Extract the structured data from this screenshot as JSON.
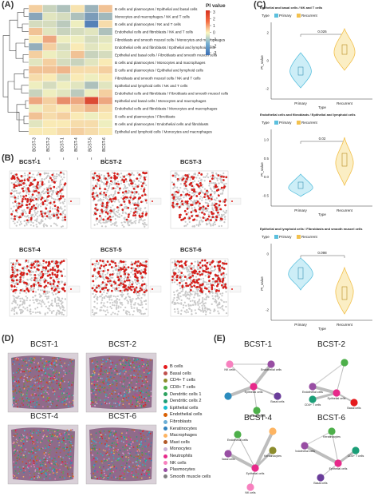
{
  "panels": {
    "A": "(A)",
    "B": "(B)",
    "C": "(C)",
    "D": "(D)",
    "E": "(E)"
  },
  "colors": {
    "heat_low": "#3b6fb6",
    "heat_mid": "#fbf7c0",
    "heat_high": "#d7301f",
    "primary": "#5bc0de",
    "recurrent": "#f2c14e",
    "spot": "#e3201b",
    "tissue": "#c9c9c9"
  },
  "heatmap": {
    "legend_title": "PI value",
    "legend_ticks": [
      "3",
      "2",
      "1",
      "0",
      "-1",
      "-2",
      "-3"
    ],
    "columns": [
      "BCST-3",
      "BCST-2",
      "BCST-1",
      "BCST-4",
      "BCST-5",
      "BCST-6"
    ],
    "rows": [
      "B cells and plasmocytes / Epithelial and basal cells",
      "Monocytes and macrophages / NK and T cells",
      "B cells and plasmocytes / NK and T cells",
      "Endothelial cells and fibroblasts / NK and T cells",
      "Fibroblasts and smooth muscel cells / Monocytes and macrophages",
      "Endothelial cells and fibroblasts / Epithelial and lymphoid cells",
      "Epithelial and basal cells / Fibroblasts and smooth muscel cells",
      "B cells and plasmocytes / Monocytes and macrophages",
      "B cells and plasmocytes / Epithelial and lymphoid cells",
      "Fibroblasts and smooth muscel cells / NK and T cells",
      "Epithelial and lymphoid cells / NK and T cells",
      "Endothelial cells and fibroblasts / Fibroblasts and smooth muscel cells",
      "Epithelial and basal cells / Monocytes and macrophages",
      "Endothelial cells and fibroblasts / Monocytes and macrophages",
      "B cells and plasmocytes / Fibroblasts",
      "B cells and plasmocytes / Endothelial cells and fibroblasts",
      "Epithelial and lymphoid cells / Monocytes and macrophages"
    ],
    "values": [
      [
        0.6,
        -0.8,
        -1.2,
        0.3,
        -1.5,
        0.8
      ],
      [
        -1.8,
        -0.4,
        -0.6,
        -1.2,
        -2.0,
        -1.4
      ],
      [
        -0.6,
        -0.6,
        -1.0,
        -0.2,
        -2.6,
        0.4
      ],
      [
        0.8,
        -0.4,
        -0.8,
        -0.6,
        -0.4,
        -1.2
      ],
      [
        0.2,
        1.2,
        -0.2,
        -0.2,
        -0.6,
        -0.4
      ],
      [
        -1.6,
        0.6,
        -0.6,
        0.2,
        -0.4,
        -0.2
      ],
      [
        0.6,
        -0.2,
        -0.4,
        0.8,
        -0.8,
        -0.6
      ],
      [
        -0.4,
        0.6,
        -0.6,
        -0.8,
        -0.4,
        0.2
      ],
      [
        0.8,
        0.8,
        1.0,
        0.4,
        0.4,
        0.6
      ],
      [
        0.4,
        0.2,
        -0.6,
        0.2,
        -0.2,
        0.2
      ],
      [
        -0.2,
        -0.6,
        -0.2,
        -0.4,
        -1.2,
        -0.4
      ],
      [
        -0.8,
        -0.2,
        -0.4,
        -1.0,
        -0.2,
        0.6
      ],
      [
        1.2,
        0.6,
        1.6,
        1.2,
        2.6,
        1.2
      ],
      [
        -0.2,
        0.4,
        0.2,
        0.6,
        1.0,
        0.4
      ],
      [
        0.8,
        0.4,
        0.6,
        0.2,
        -0.2,
        0.2
      ],
      [
        -0.4,
        0.2,
        0.2,
        0.4,
        0.4,
        -0.2
      ],
      [
        0.2,
        0.2,
        0.4,
        0.6,
        0.4,
        0.2
      ]
    ]
  },
  "spatial_maps": {
    "titles": [
      "BCST-1",
      "BCST-2",
      "BCST-3",
      "BCST-4",
      "BCST-5",
      "BCST-6"
    ]
  },
  "violin": {
    "legend_title": "Type",
    "primary_label": "Primary",
    "recurrent_label": "Recurrent",
    "ylabel": "PI_value",
    "xlabel": "Type",
    "plots": [
      {
        "title": "Epithelial and basal cells / NK and T cells",
        "pvalue": "0.026",
        "ticks": [
          "2",
          "0",
          "-2"
        ]
      },
      {
        "title": "Endothelial cells and fibroblasts / Epithelial and lymphoid cells",
        "pvalue": "0.02",
        "ticks": [
          "1.0",
          "0.5",
          "0.0",
          "-0.5"
        ]
      },
      {
        "title": "Epithelial and lymphoid cells / Fibroblasts and smooth muscel cells",
        "pvalue": "0.098",
        "ticks": [
          "0",
          "-2"
        ]
      }
    ]
  },
  "cell_types": {
    "titles": [
      "BCST-1",
      "BCST-2",
      "BCST-4",
      "BCST-6"
    ],
    "legend": [
      {
        "label": "B cells",
        "color": "#e41a1c"
      },
      {
        "label": "Basal cells",
        "color": "#c0504d"
      },
      {
        "label": "CD4+ T cells",
        "color": "#8c8c2c"
      },
      {
        "label": "CD8+ T cells",
        "color": "#4daf4a"
      },
      {
        "label": "Dendritic cells 1",
        "color": "#2ca25f"
      },
      {
        "label": "Dendritic cells 2",
        "color": "#1b9e77"
      },
      {
        "label": "Epithelial cells",
        "color": "#17becf"
      },
      {
        "label": "Endothelial cells",
        "color": "#d95f02"
      },
      {
        "label": "Fibroblasts",
        "color": "#6baed6"
      },
      {
        "label": "Keratinocytes",
        "color": "#3182bd"
      },
      {
        "label": "Macrophages",
        "color": "#fdb462"
      },
      {
        "label": "Mast cells",
        "color": "#b15928"
      },
      {
        "label": "Monocytes",
        "color": "#cab2d6"
      },
      {
        "label": "Neutrophils",
        "color": "#e7298a"
      },
      {
        "label": "NK cells",
        "color": "#f781bf"
      },
      {
        "label": "Plasmocytes",
        "color": "#984ea3"
      },
      {
        "label": "Smooth muscle cells",
        "color": "#7f7f7f"
      }
    ]
  },
  "networks": [
    {
      "title": "BCST-1",
      "nodes": [
        {
          "label": "NK cells",
          "c": "#f781bf"
        },
        {
          "label": "Endothelial cells",
          "c": "#984ea3"
        },
        {
          "label": "Epithelial cells",
          "c": "#e7298a"
        },
        {
          "label": "Basal cells",
          "c": "#6a3d9a"
        },
        {
          "label": "Keratinocytes",
          "c": "#4daf4a"
        },
        {
          "label": "",
          "c": "#2b8cbe"
        }
      ]
    },
    {
      "title": "BCST-2",
      "nodes": [
        {
          "label": "",
          "c": "#4daf4a"
        },
        {
          "label": "Endothelial cells",
          "c": "#984ea3"
        },
        {
          "label": "CD4+ T cells",
          "c": "#1b9e77"
        },
        {
          "label": "Basal cells",
          "c": "#e41a1c"
        },
        {
          "label": "Epithelial cells",
          "c": "#e7298a"
        }
      ]
    },
    {
      "title": "BCST-4",
      "nodes": [
        {
          "label": "Endothelial cells",
          "c": "#4daf4a"
        },
        {
          "label": "Basal cells",
          "c": "#984ea3"
        },
        {
          "label": "Keratinocytes",
          "c": "#8c8c2c"
        },
        {
          "label": "Epithelial cells",
          "c": "#e7298a"
        },
        {
          "label": "NK cells",
          "c": "#f781bf"
        },
        {
          "label": "",
          "c": "#fdb462"
        }
      ]
    },
    {
      "title": "BCST-6",
      "nodes": [
        {
          "label": "Keratinocytes",
          "c": "#4daf4a"
        },
        {
          "label": "Endothelial cells",
          "c": "#984ea3"
        },
        {
          "label": "CD4+ T cells",
          "c": "#1b9e77"
        },
        {
          "label": "Epithelial cells",
          "c": "#e7298a"
        },
        {
          "label": "Basal cells",
          "c": "#6a3d9a"
        }
      ]
    }
  ]
}
